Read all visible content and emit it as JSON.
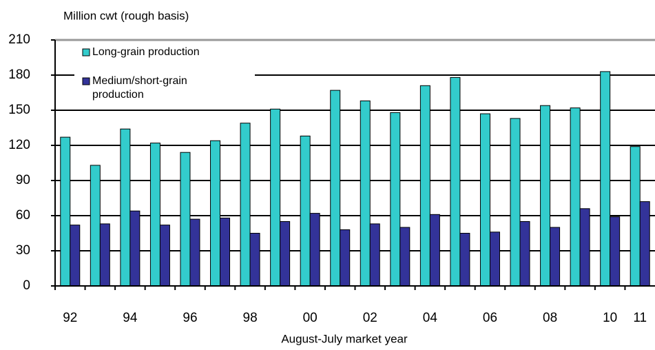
{
  "chart_data": {
    "type": "bar",
    "y_axis_label": "Million cwt (rough basis)",
    "x_axis_label": "August-July market year",
    "categories": [
      "92",
      null,
      "94",
      null,
      "96",
      null,
      "98",
      null,
      "00",
      null,
      "02",
      null,
      "04",
      null,
      "06",
      null,
      "08",
      null,
      "10",
      "11"
    ],
    "series": [
      {
        "name": "Long-grain production",
        "color": "#33cccc",
        "values": [
          127,
          103,
          134,
          122,
          114,
          124,
          139,
          151,
          128,
          167,
          158,
          148,
          171,
          178,
          147,
          143,
          154,
          152,
          183,
          119
        ]
      },
      {
        "name": "Medium/short-grain production",
        "color": "#333399",
        "values": [
          52,
          53,
          64,
          52,
          57,
          58,
          45,
          55,
          62,
          48,
          53,
          50,
          61,
          45,
          46,
          55,
          50,
          66,
          59,
          72
        ]
      }
    ],
    "ylim": [
      0,
      210
    ],
    "yticks": [
      0,
      30,
      60,
      90,
      120,
      150,
      180,
      210
    ],
    "grid": true,
    "legend": "upper-left"
  }
}
